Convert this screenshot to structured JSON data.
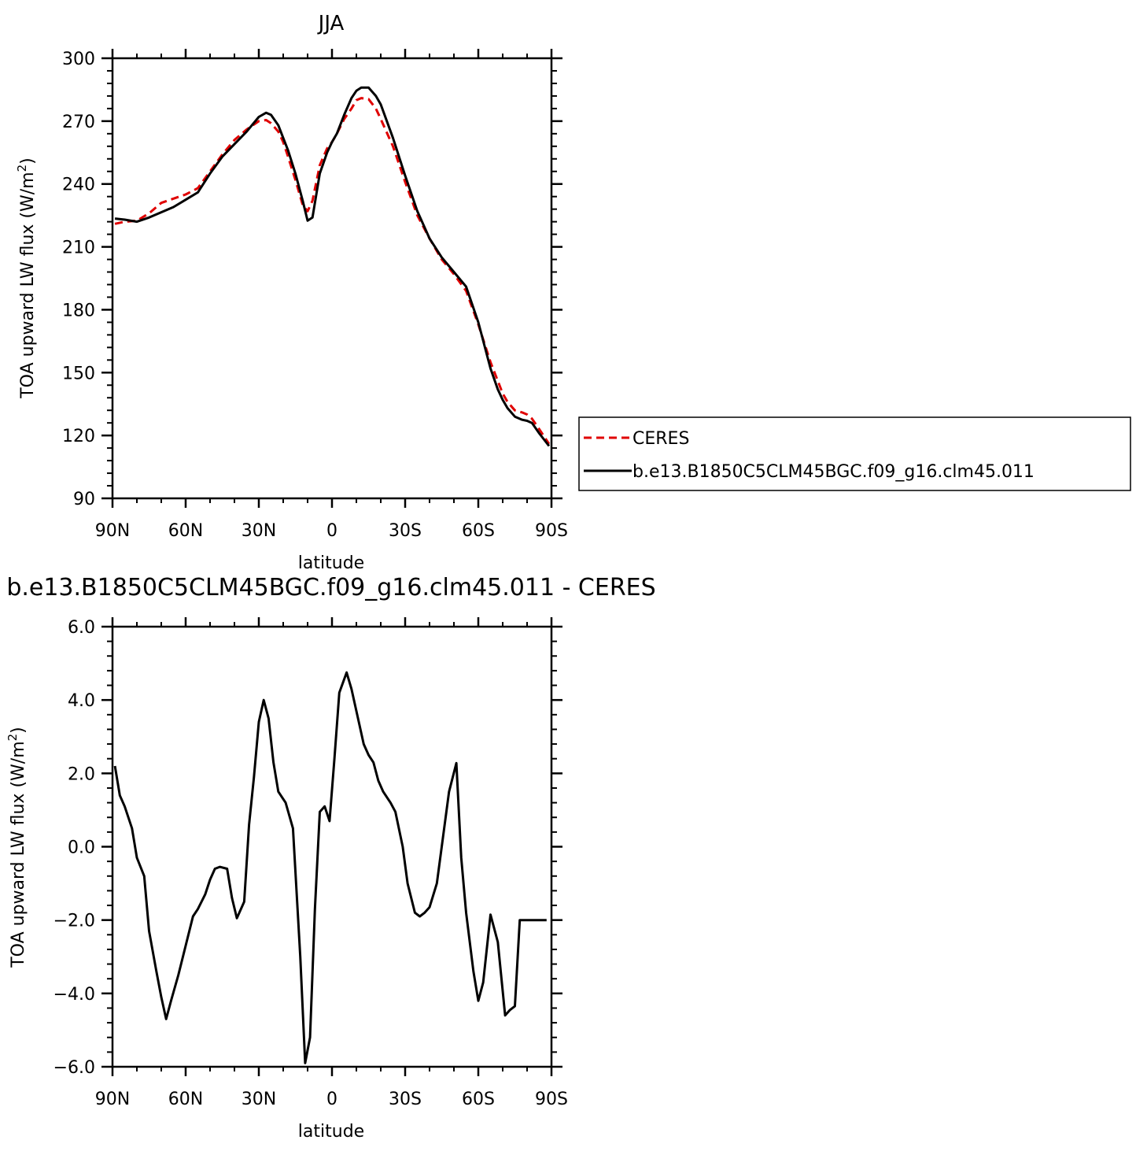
{
  "chart_data": [
    {
      "type": "line",
      "title": "JJA",
      "xlabel": "latitude",
      "ylabel_main": "TOA upward LW flux (W/m",
      "ylabel_sup": "2",
      "ylabel_close": ")",
      "xlim": [
        90,
        -90
      ],
      "ylim": [
        90,
        300
      ],
      "x_ticks": [
        90,
        60,
        30,
        0,
        -30,
        -60,
        -90
      ],
      "x_tick_labels": [
        "90N",
        "60N",
        "30N",
        "0",
        "30S",
        "60S",
        "90S"
      ],
      "y_ticks": [
        90,
        120,
        150,
        180,
        210,
        240,
        270,
        300
      ],
      "y_tick_labels": [
        "90",
        "120",
        "150",
        "180",
        "210",
        "240",
        "270",
        "300"
      ],
      "legend_position": "right, outside plot",
      "colors": {
        "CERES": "#e00000",
        "model": "#000000"
      },
      "series": [
        {
          "name": "CERES",
          "style": "dashed",
          "x": [
            89,
            85,
            80,
            75,
            70,
            65,
            60,
            55,
            50,
            45,
            40,
            35,
            30,
            27,
            25,
            22,
            20,
            18,
            15,
            12,
            10,
            8,
            5,
            2,
            0,
            -2,
            -5,
            -8,
            -10,
            -12,
            -15,
            -18,
            -20,
            -25,
            -30,
            -35,
            -40,
            -45,
            -50,
            -55,
            -60,
            -65,
            -68,
            -70,
            -72,
            -75,
            -78,
            -80,
            -82,
            -85,
            -89
          ],
          "y": [
            221,
            222,
            222.5,
            226,
            231,
            233,
            235,
            238,
            246,
            254,
            261,
            266,
            270,
            270.5,
            269,
            265,
            260,
            253,
            242,
            230,
            227,
            232,
            249,
            257,
            260,
            264,
            271,
            276,
            280,
            281,
            280.5,
            276,
            271,
            258,
            241,
            225,
            214,
            204,
            197,
            189,
            173,
            155,
            146,
            140,
            136,
            132,
            131,
            130,
            128,
            123,
            116
          ]
        },
        {
          "name": "b.e13.B1850C5CLM45BGC.f09_g16.clm45.011",
          "style": "solid",
          "x": [
            89,
            85,
            80,
            75,
            70,
            65,
            60,
            55,
            50,
            45,
            40,
            35,
            30,
            27,
            25,
            22,
            20,
            18,
            15,
            12,
            10,
            8,
            5,
            2,
            0,
            -2,
            -5,
            -8,
            -10,
            -12,
            -15,
            -18,
            -20,
            -25,
            -30,
            -35,
            -40,
            -45,
            -50,
            -55,
            -60,
            -65,
            -68,
            -70,
            -72,
            -75,
            -78,
            -80,
            -82,
            -85,
            -89
          ],
          "y": [
            223.5,
            223,
            222,
            224,
            226.5,
            229,
            232.5,
            236,
            245,
            253,
            259,
            265,
            272,
            274,
            273,
            268,
            262,
            256,
            245,
            232,
            222.5,
            224,
            245,
            255,
            260,
            264,
            273,
            281,
            284.5,
            286,
            286,
            282,
            278,
            262,
            244,
            227,
            214,
            205,
            198,
            191,
            174,
            152,
            142,
            137,
            133,
            129,
            127.5,
            127,
            126,
            121,
            115
          ]
        }
      ]
    },
    {
      "type": "line",
      "title": "b.e13.B1850C5CLM45BGC.f09_g16.clm45.011 - CERES",
      "xlabel": "latitude",
      "ylabel_main": "TOA upward LW flux (W/m",
      "ylabel_sup": "2",
      "ylabel_close": ")",
      "xlim": [
        90,
        -90
      ],
      "ylim": [
        -6,
        6
      ],
      "x_ticks": [
        90,
        60,
        30,
        0,
        -30,
        -60,
        -90
      ],
      "x_tick_labels": [
        "90N",
        "60N",
        "30N",
        "0",
        "30S",
        "60S",
        "90S"
      ],
      "y_ticks": [
        -6,
        -4,
        -2,
        0,
        2,
        4,
        6
      ],
      "y_tick_labels": [
        "−6.0",
        "−4.0",
        "−2.0",
        "0.0",
        "2.0",
        "4.0",
        "6.0"
      ],
      "series": [
        {
          "style": "solid",
          "x": [
            89,
            87,
            85,
            82,
            80,
            77,
            75,
            72,
            70,
            68,
            66,
            63,
            60,
            57,
            55,
            52,
            50,
            48,
            46,
            43,
            41,
            39,
            36,
            34,
            32,
            30,
            28,
            26,
            24,
            22,
            19,
            16,
            13,
            11,
            9,
            7,
            5,
            3,
            1,
            -1,
            -3,
            -6,
            -8,
            -11,
            -13,
            -15,
            -17,
            -19,
            -21,
            -24,
            -26,
            -29,
            -31,
            -34,
            -36,
            -38,
            -40,
            -43,
            -45,
            -48,
            -51,
            -53,
            -55,
            -58,
            -60,
            -62,
            -65,
            -68,
            -71,
            -73,
            -75,
            -77,
            -79,
            -81,
            -83,
            -86,
            -88
          ],
          "y": [
            2.2,
            1.4,
            1.1,
            0.5,
            -0.3,
            -0.8,
            -2.3,
            -3.4,
            -4.1,
            -4.7,
            -4.2,
            -3.5,
            -2.7,
            -1.9,
            -1.7,
            -1.3,
            -0.9,
            -0.6,
            -0.55,
            -0.6,
            -1.4,
            -1.95,
            -1.5,
            0.6,
            1.9,
            3.4,
            4.0,
            3.5,
            2.3,
            1.5,
            1.2,
            0.5,
            -3.0,
            -5.9,
            -5.2,
            -1.7,
            0.95,
            1.1,
            0.7,
            2.4,
            4.2,
            4.75,
            4.3,
            3.4,
            2.8,
            2.5,
            2.3,
            1.8,
            1.5,
            1.2,
            0.95,
            0.0,
            -1.0,
            -1.8,
            -1.9,
            -1.8,
            -1.65,
            -1.0,
            0.0,
            1.5,
            2.28,
            -0.3,
            -1.8,
            -3.4,
            -4.2,
            -3.7,
            -1.85,
            -2.6,
            -4.6,
            -4.45,
            -4.35,
            -2.0,
            -2.0,
            -2.0,
            -2.0,
            -2.0,
            -2.0
          ]
        }
      ]
    }
  ]
}
